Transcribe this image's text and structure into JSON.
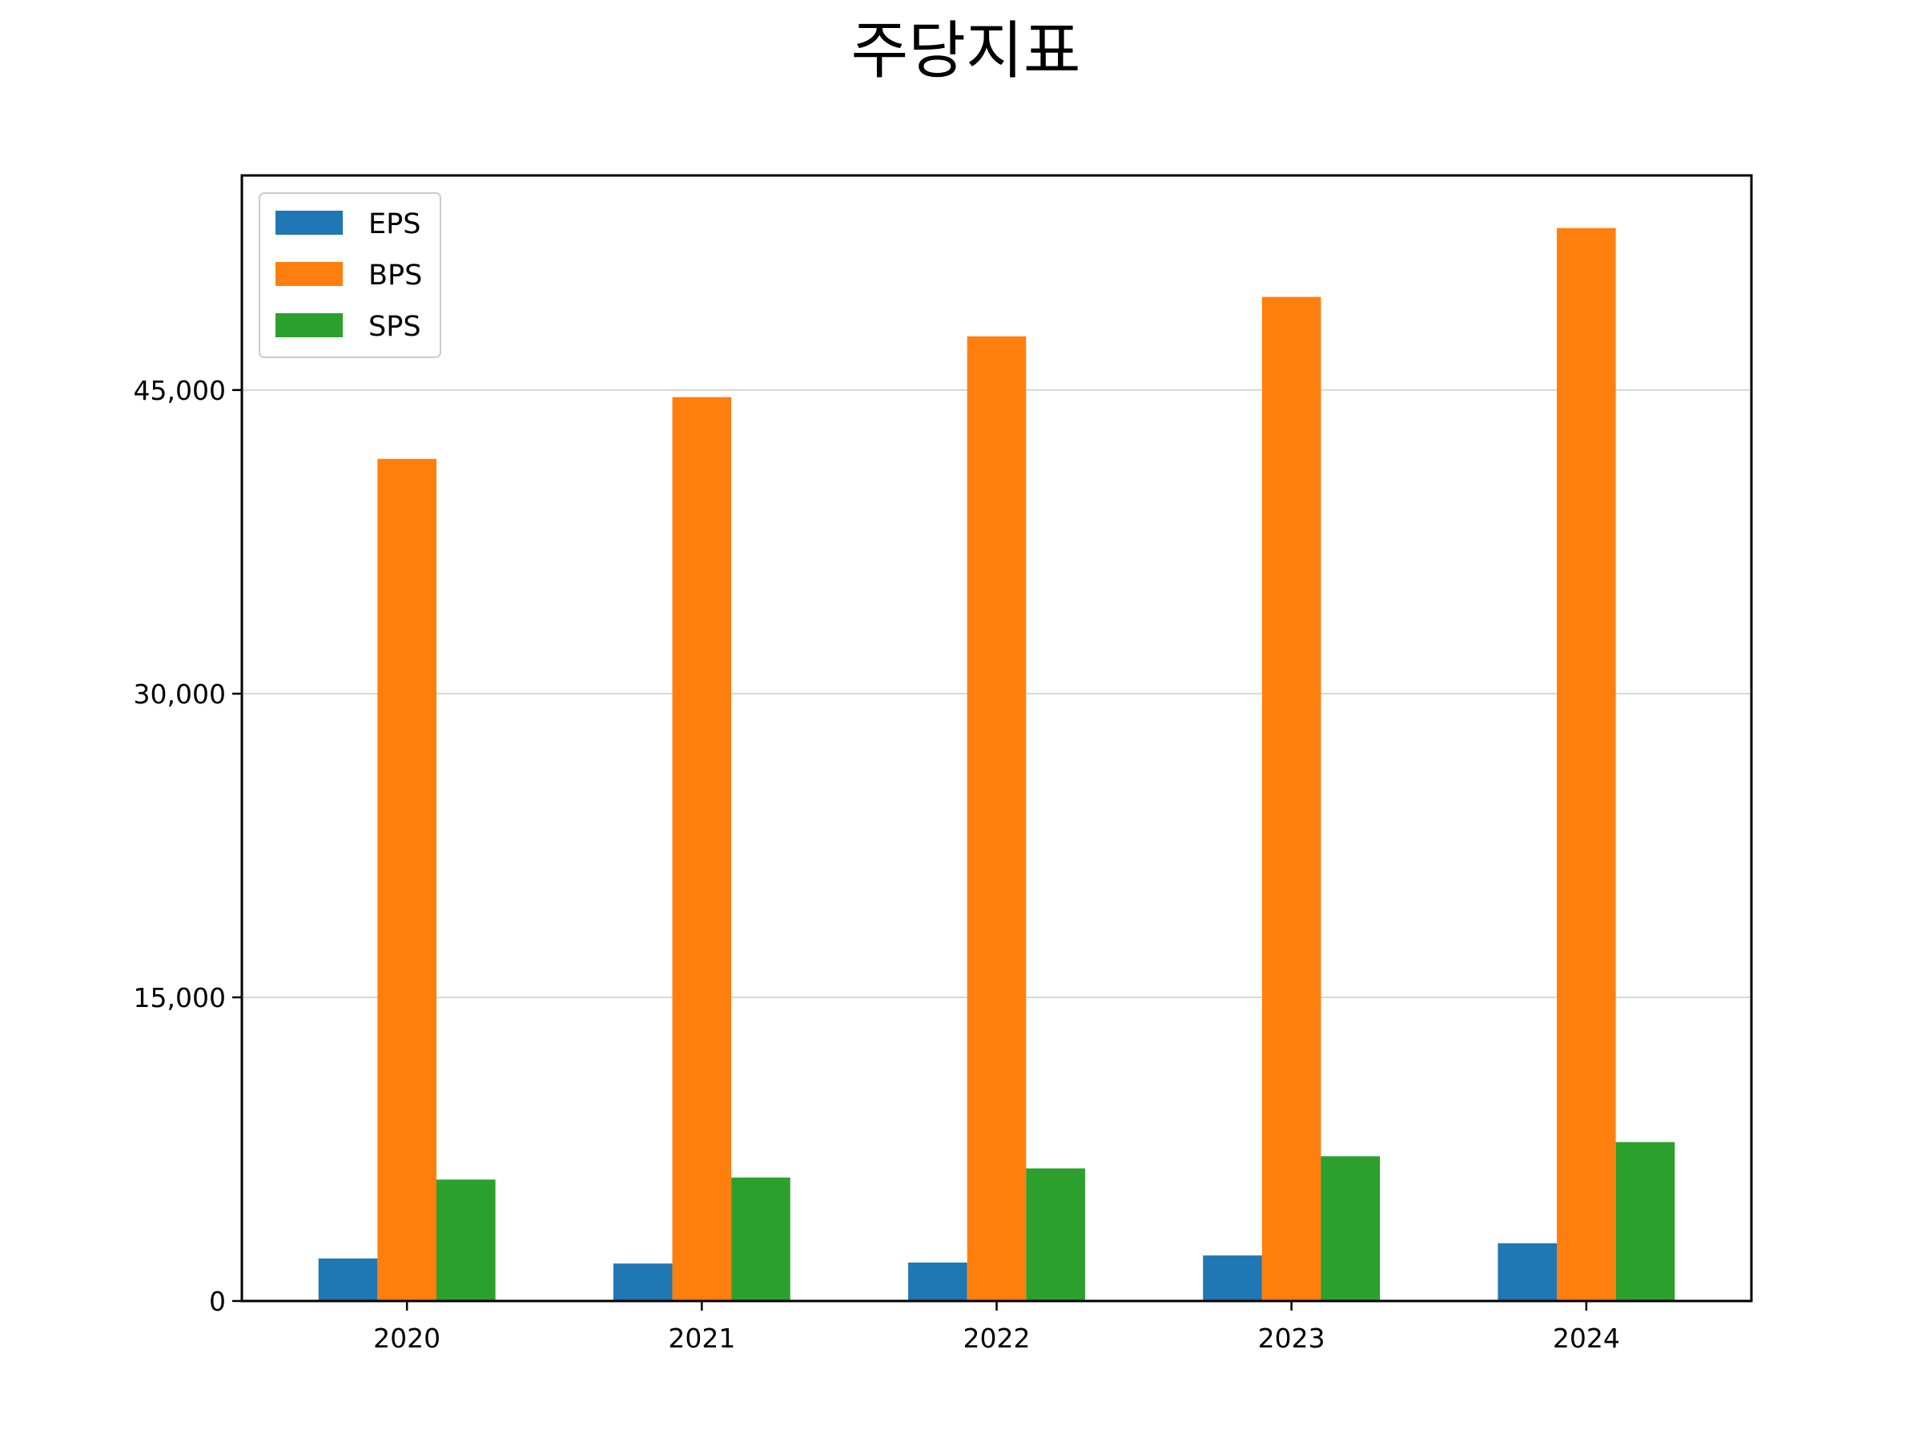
{
  "chart_data": {
    "type": "bar",
    "title": "주당지표",
    "xlabel": "",
    "ylabel": "",
    "categories": [
      "2020",
      "2021",
      "2022",
      "2023",
      "2024"
    ],
    "series": [
      {
        "name": "EPS",
        "color": "#1f77b4",
        "values": [
          2100,
          1850,
          1900,
          2250,
          2850
        ]
      },
      {
        "name": "BPS",
        "color": "#ff7f0e",
        "values": [
          41600,
          44650,
          47650,
          49600,
          53000
        ]
      },
      {
        "name": "SPS",
        "color": "#2ca02c",
        "values": [
          6000,
          6100,
          6550,
          7150,
          7850
        ]
      }
    ],
    "ylim": [
      0,
      55600
    ],
    "yticks": [
      0,
      15000,
      30000,
      45000
    ],
    "ytick_labels": [
      "0",
      "15,000",
      "30,000",
      "45,000"
    ],
    "grid": {
      "y": true,
      "x": false
    },
    "legend": {
      "position": "top-left"
    }
  }
}
